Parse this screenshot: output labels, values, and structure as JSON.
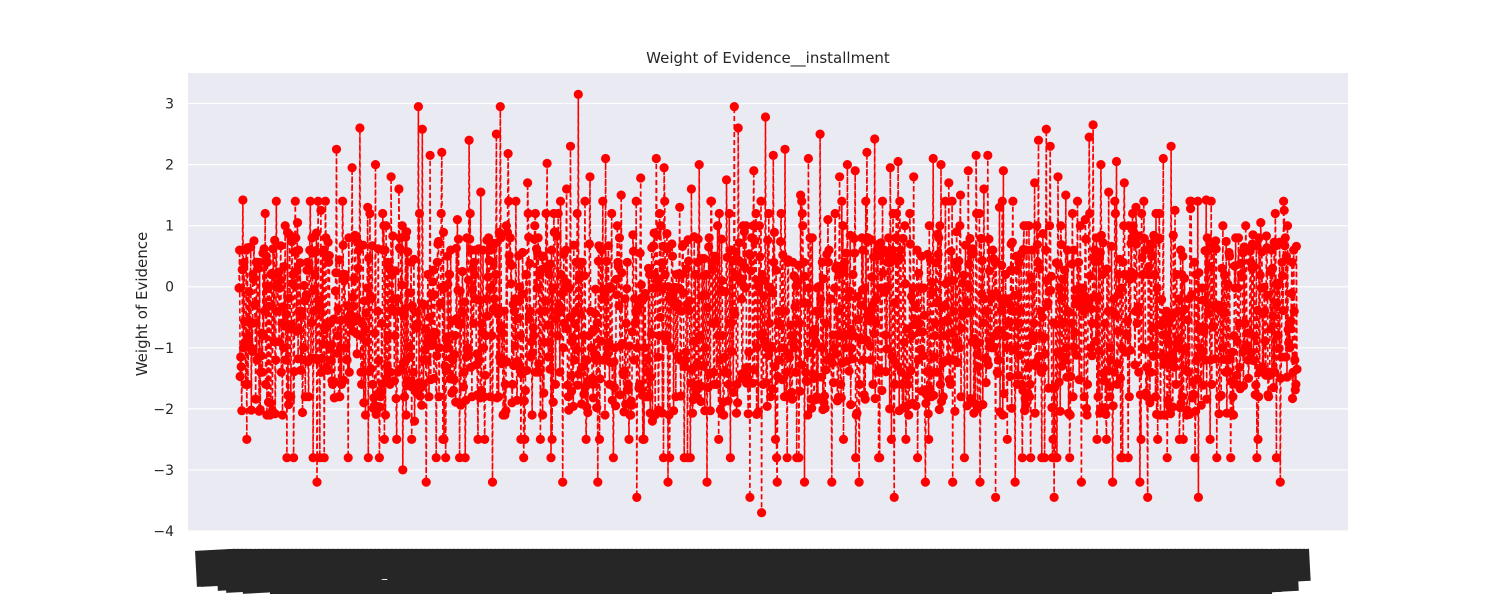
{
  "chart_data": {
    "type": "line",
    "title": "Weight of Evidence__installment",
    "xlabel": "",
    "ylabel": "Weight of Evidence",
    "ylim": [
      -4,
      3.5
    ],
    "yticks": [
      -4,
      -3,
      -2,
      -1,
      0,
      1,
      2,
      3
    ],
    "grid": true,
    "legend": "none",
    "n_points": 1900,
    "style": {
      "line": "dashed",
      "marker": "circle"
    },
    "colors": {
      "series": "#ff0000",
      "plot_background": "#eaeaf2",
      "grid": "#ffffff",
      "text": "#262626",
      "xtick_labels": "#262626"
    },
    "series": [
      {
        "values": [
          -0.02,
          1.42,
          -2.5,
          0.65,
          -0.3,
          0.3,
          -1.4,
          0.5,
          -2.1,
          -0.9,
          0.2,
          -0.6,
          -1.2,
          0.85,
          -2.8,
          1.05,
          -0.4,
          -1.8,
          0.3,
          -2.8,
          -3.2,
          1.25,
          -0.7,
          0.4,
          -1.6,
          2.25,
          -1.0,
          0.1,
          -2.8,
          1.95,
          -0.5,
          2.6,
          -1.9,
          1.3,
          -0.2,
          2.0,
          -2.8,
          0.6,
          -1.3,
          1.8,
          -0.8,
          1.6,
          -3.0,
          0.9,
          -0.1,
          -2.2,
          2.95,
          2.58,
          -3.2,
          2.15,
          -1.5,
          0.7,
          2.2,
          -2.8,
          0.2,
          -1.7,
          1.1,
          -0.6,
          -2.8,
          2.4,
          0.3,
          -1.1,
          1.55,
          -2.5,
          0.8,
          -3.2,
          2.5,
          2.95,
          -0.4,
          2.18,
          -1.9,
          1.4,
          0.0,
          -2.8,
          1.7,
          -0.9,
          1.2,
          -1.4,
          0.5,
          2.02,
          -2.8,
          0.9,
          -0.3,
          -3.2,
          1.6,
          2.3,
          -1.2,
          3.15,
          0.4,
          -2.5,
          1.8,
          -0.7,
          -3.2,
          0.6,
          2.1,
          -1.6,
          -2.8,
          1.0,
          1.5,
          -0.2,
          -2.5,
          0.85,
          -3.45,
          1.78,
          -1.0,
          0.3,
          -2.2,
          2.1,
          -0.5,
          1.95,
          -3.2,
          0.7,
          -1.8,
          1.3,
          -0.1,
          -2.8,
          1.6,
          0.2,
          2.0,
          -1.3,
          -3.2,
          1.4,
          0.5,
          -2.5,
          -0.8,
          1.75,
          -2.8,
          2.95,
          2.6,
          -1.5,
          1.0,
          -3.45,
          1.9,
          0.1,
          -3.7,
          2.78,
          -0.6,
          2.15,
          -3.2,
          1.2,
          2.25,
          -1.1,
          0.4,
          -2.8,
          1.5,
          -3.2,
          2.1,
          0.8,
          -0.4,
          2.5,
          -1.9,
          1.1,
          -3.2,
          0.3,
          1.8,
          -2.5,
          2.0,
          -0.7,
          1.9,
          -3.2,
          0.6,
          2.2,
          -1.2,
          2.42,
          -2.8,
          1.4,
          0.0,
          1.95,
          -3.45,
          2.05,
          -1.6,
          -2.5,
          1.2,
          1.8,
          -2.8,
          0.5,
          -3.2,
          1.0,
          2.1,
          -1.4,
          2.0,
          -0.3,
          1.7,
          -3.2,
          0.9,
          1.5,
          -2.8,
          1.9,
          -0.9,
          2.15,
          -3.2,
          1.6,
          2.15,
          -1.0,
          -3.45,
          1.3,
          1.9,
          -2.5,
          0.7,
          -3.2,
          0.4,
          -1.7,
          1.0,
          -2.8,
          1.7,
          2.4,
          -0.5,
          2.58,
          2.3,
          -3.45,
          1.8,
          -1.3,
          1.5,
          -2.8,
          0.6,
          1.4,
          -3.2,
          1.1,
          2.45,
          2.65,
          -2.5,
          2.0,
          -0.6,
          1.55,
          -3.2,
          2.05,
          -1.5,
          1.7,
          -2.8,
          0.8,
          1.3,
          -3.2,
          1.4,
          -3.45,
          0.5,
          -1.8,
          1.2,
          2.1,
          -2.8,
          2.3,
          1.25,
          -0.2,
          0.5,
          -2.1,
          1.28,
          0.4,
          -3.45
        ]
      }
    ]
  }
}
